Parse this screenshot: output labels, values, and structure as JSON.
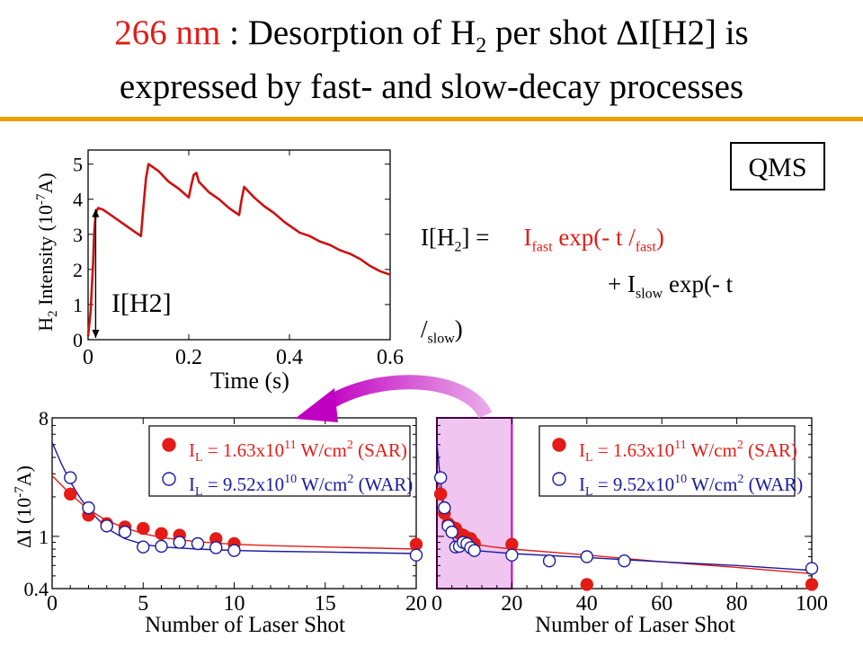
{
  "slide": {
    "title_red": "266 nm",
    "title_line1_rest": " : Desorption of H",
    "title_sub": "2",
    "title_line1_end": " per shot ΔI[H2] is",
    "title_line2": "expressed by fast- and slow-decay processes",
    "qms_label": "QMS",
    "eq_lhs": "I[H",
    "eq_lhs_sub": "2",
    "eq_lhs_end": "] =",
    "eq_fast_a": "I",
    "eq_fast_sub": "fast",
    "eq_fast_b": " exp(- t /",
    "eq_fast_tau_sub": "fast",
    "eq_fast_c": ")",
    "eq_plus": "+ ",
    "eq_slow_a": "I",
    "eq_slow_sub": "slow",
    "eq_slow_b": " exp(- t",
    "eq_slow_c": "/",
    "eq_slow_tau_sub": "slow",
    "eq_slow_d": ")",
    "missing_glyph": "",
    "arrow_label": "I[H2]"
  },
  "chart_data": [
    {
      "type": "line",
      "xlabel": "Time (s)",
      "ylabel_prefix": "H",
      "ylabel_sub": "2",
      "ylabel_rest": " Intensity (10",
      "ylabel_exp": "-7",
      "ylabel_end": "A)",
      "xlim": [
        0,
        0.6
      ],
      "ylim": [
        0,
        5.4
      ],
      "x_ticks": [
        "0",
        "0.2",
        "0.4",
        "0.6"
      ],
      "y_ticks": [
        "0",
        "1",
        "2",
        "3",
        "4",
        "5"
      ],
      "color": "#cc1111",
      "series": [
        {
          "x": [
            0,
            0.005,
            0.01,
            0.012,
            0.015,
            0.02,
            0.03,
            0.05,
            0.07,
            0.09,
            0.105,
            0.11,
            0.115,
            0.12,
            0.14,
            0.16,
            0.18,
            0.2,
            0.205,
            0.21,
            0.215,
            0.22,
            0.24,
            0.26,
            0.28,
            0.3,
            0.305,
            0.31,
            0.33,
            0.35,
            0.37,
            0.39,
            0.4,
            0.42,
            0.44,
            0.46,
            0.48,
            0.5,
            0.52,
            0.54,
            0.56,
            0.58,
            0.6
          ],
          "y": [
            0.1,
            0.8,
            2.2,
            3.0,
            3.6,
            3.75,
            3.7,
            3.5,
            3.3,
            3.1,
            2.95,
            3.8,
            4.6,
            5.0,
            4.8,
            4.5,
            4.3,
            4.05,
            4.4,
            4.7,
            4.75,
            4.5,
            4.2,
            4.0,
            3.75,
            3.55,
            4.0,
            4.35,
            4.05,
            3.8,
            3.6,
            3.35,
            3.25,
            3.05,
            2.95,
            2.8,
            2.7,
            2.55,
            2.45,
            2.3,
            2.1,
            1.95,
            1.85
          ]
        }
      ],
      "annotation": "I[H2]"
    },
    {
      "type": "scatter",
      "xlabel": "Number of Laser Shot",
      "ylabel_delta": "Δ",
      "ylabel_rest": "I (10",
      "ylabel_exp": "-7",
      "ylabel_end": "A)",
      "xlim": [
        0,
        20
      ],
      "ylim": [
        0.4,
        8
      ],
      "yscale": "log",
      "x_ticks": [
        "0",
        "5",
        "10",
        "15",
        "20"
      ],
      "y_ticks": [
        "0.4",
        "1",
        "8"
      ],
      "legend_position": "top-right",
      "series": [
        {
          "name": "I_L = 1.63x10^11 W/cm^2 (SAR)",
          "legend_a": "I",
          "legend_sub": "L",
          "legend_b": " = 1.63x10",
          "legend_exp": "11",
          "legend_c": " W/cm",
          "legend_exp2": "2",
          "legend_d": " (SAR)",
          "marker": "filled-circle",
          "color": "#e41b17",
          "x": [
            1,
            2,
            3,
            4,
            5,
            6,
            7,
            9,
            10,
            20
          ],
          "y": [
            2.1,
            1.45,
            1.25,
            1.18,
            1.15,
            1.05,
            1.02,
            0.96,
            0.88,
            0.87
          ],
          "fit_x": [
            0,
            1,
            2,
            3,
            4,
            5,
            6,
            8,
            10,
            12,
            15,
            20
          ],
          "fit_y": [
            2.9,
            2.1,
            1.6,
            1.32,
            1.16,
            1.05,
            0.98,
            0.91,
            0.87,
            0.85,
            0.83,
            0.8
          ]
        },
        {
          "name": "I_L = 9.52x10^10 W/cm^2 (WAR)",
          "legend_a": "I",
          "legend_sub": "L",
          "legend_b": " = 9.52x10",
          "legend_exp": "10",
          "legend_c": " W/cm",
          "legend_exp2": "2",
          "legend_d": " (WAR)",
          "marker": "open-circle",
          "color": "#1a1aa0",
          "x": [
            1,
            2,
            3,
            4,
            5,
            6,
            7,
            8,
            9,
            10,
            20
          ],
          "y": [
            2.8,
            1.65,
            1.2,
            1.08,
            0.83,
            0.84,
            0.9,
            0.88,
            0.82,
            0.78,
            0.72
          ],
          "fit_x": [
            0,
            0.5,
            1,
            1.5,
            2,
            3,
            4,
            5,
            6,
            8,
            10,
            12,
            15,
            20
          ],
          "fit_y": [
            5.2,
            3.6,
            2.6,
            2.0,
            1.6,
            1.15,
            0.96,
            0.87,
            0.83,
            0.8,
            0.78,
            0.77,
            0.76,
            0.74
          ]
        }
      ]
    },
    {
      "type": "scatter",
      "xlabel": "Number of Laser Shot",
      "xlim": [
        0,
        100
      ],
      "ylim": [
        0.4,
        8
      ],
      "yscale": "log",
      "x_ticks": [
        "0",
        "20",
        "40",
        "60",
        "80",
        "100"
      ],
      "legend_position": "top-right",
      "highlight_x": [
        0,
        20
      ],
      "series": [
        {
          "name": "I_L = 1.63x10^11 W/cm^2 (SAR)",
          "legend_a": "I",
          "legend_sub": "L",
          "legend_b": " = 1.63x10",
          "legend_exp": "11",
          "legend_c": " W/cm",
          "legend_exp2": "2",
          "legend_d": " (SAR)",
          "marker": "filled-circle",
          "color": "#e41b17",
          "x": [
            1,
            2,
            3,
            4,
            5,
            6,
            7,
            8,
            9,
            10,
            20,
            40,
            100
          ],
          "y": [
            2.1,
            1.5,
            1.25,
            1.18,
            1.15,
            1.05,
            1.02,
            0.98,
            0.96,
            0.88,
            0.87,
            0.43,
            0.43
          ],
          "fit_x": [
            0,
            1,
            2,
            3,
            5,
            8,
            10,
            15,
            20,
            40,
            60,
            80,
            100
          ],
          "fit_y": [
            2.9,
            2.1,
            1.6,
            1.32,
            1.05,
            0.92,
            0.87,
            0.83,
            0.8,
            0.72,
            0.64,
            0.58,
            0.52
          ]
        },
        {
          "name": "I_L = 9.52x10^10 W/cm^2 (WAR)",
          "legend_a": "I",
          "legend_sub": "L",
          "legend_b": " = 9.52x10",
          "legend_exp": "10",
          "legend_c": " W/cm",
          "legend_exp2": "2",
          "legend_d": " (WAR)",
          "marker": "open-circle",
          "color": "#1a1aa0",
          "x": [
            1,
            2,
            3,
            4,
            5,
            6,
            7,
            8,
            9,
            10,
            20,
            30,
            40,
            50,
            100
          ],
          "y": [
            2.8,
            1.65,
            1.2,
            1.08,
            0.83,
            0.84,
            0.9,
            0.88,
            0.82,
            0.78,
            0.72,
            0.65,
            0.7,
            0.65,
            0.57
          ],
          "fit_x": [
            0,
            0.5,
            1,
            1.5,
            2,
            3,
            5,
            8,
            10,
            15,
            20,
            40,
            60,
            80,
            100
          ],
          "fit_y": [
            5.2,
            3.6,
            2.6,
            2.0,
            1.6,
            1.15,
            0.87,
            0.8,
            0.78,
            0.76,
            0.74,
            0.69,
            0.64,
            0.6,
            0.55
          ]
        }
      ]
    }
  ]
}
